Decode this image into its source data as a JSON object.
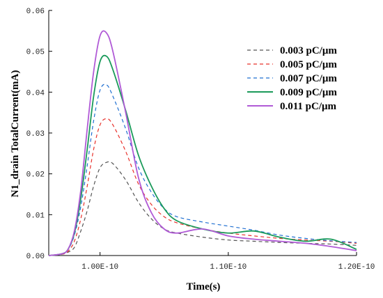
{
  "chart_data": {
    "type": "line",
    "xlabel": "Time(s)",
    "ylabel": "N1_drain TotalCurrent(mA)",
    "xlim": [
      9.6e-11,
      1.2e-10
    ],
    "ylim": [
      0,
      0.06
    ],
    "x_ticks": [
      {
        "value": 1e-10,
        "label": "1.00E-10"
      },
      {
        "value": 1.1e-10,
        "label": "1.10E-10"
      },
      {
        "value": 1.2e-10,
        "label": "1.20E-10"
      }
    ],
    "y_ticks": [
      {
        "value": 0,
        "label": "0.00"
      },
      {
        "value": 0.01,
        "label": "0.01"
      },
      {
        "value": 0.02,
        "label": "0.02"
      },
      {
        "value": 0.03,
        "label": "0.03"
      },
      {
        "value": 0.04,
        "label": "0.04"
      },
      {
        "value": 0.05,
        "label": "0.05"
      },
      {
        "value": 0.06,
        "label": "0.06"
      }
    ],
    "legend_position": "top-right",
    "grid": false,
    "series": [
      {
        "name": "0.003 pC/μm",
        "color": "#555555",
        "dash": "dashed",
        "x": [
          9.6e-11,
          9.7e-11,
          9.75e-11,
          9.8e-11,
          9.85e-11,
          9.9e-11,
          9.95e-11,
          1e-10,
          1.005e-10,
          1.01e-10,
          1.02e-10,
          1.03e-10,
          1.04e-10,
          1.05e-10,
          1.06e-10,
          1.08e-10,
          1.1e-10,
          1.12e-10,
          1.14e-10,
          1.16e-10,
          1.18e-10,
          1.2e-10
        ],
        "y": [
          0,
          0.0003,
          0.0008,
          0.002,
          0.006,
          0.011,
          0.017,
          0.0215,
          0.0228,
          0.0225,
          0.0185,
          0.013,
          0.009,
          0.0065,
          0.0055,
          0.0045,
          0.0038,
          0.0035,
          0.0032,
          0.003,
          0.0028,
          0.0025
        ]
      },
      {
        "name": "0.005 pC/μm",
        "color": "#e8302a",
        "dash": "dashed",
        "x": [
          9.6e-11,
          9.7e-11,
          9.75e-11,
          9.8e-11,
          9.85e-11,
          9.9e-11,
          9.95e-11,
          1e-10,
          1.005e-10,
          1.01e-10,
          1.02e-10,
          1.03e-10,
          1.04e-10,
          1.05e-10,
          1.06e-10,
          1.08e-10,
          1.1e-10,
          1.12e-10,
          1.14e-10,
          1.16e-10,
          1.18e-10,
          1.2e-10
        ],
        "y": [
          0,
          0.0003,
          0.001,
          0.0035,
          0.009,
          0.017,
          0.026,
          0.032,
          0.0335,
          0.032,
          0.0255,
          0.0175,
          0.0125,
          0.0095,
          0.008,
          0.0065,
          0.0055,
          0.0048,
          0.0042,
          0.0038,
          0.0035,
          0.003
        ]
      },
      {
        "name": "0.007 pC/μm",
        "color": "#1f6fd1",
        "dash": "dashed",
        "x": [
          9.6e-11,
          9.7e-11,
          9.75e-11,
          9.8e-11,
          9.85e-11,
          9.9e-11,
          9.95e-11,
          1e-10,
          1.005e-10,
          1.01e-10,
          1.02e-10,
          1.03e-10,
          1.04e-10,
          1.05e-10,
          1.06e-10,
          1.08e-10,
          1.1e-10,
          1.12e-10,
          1.14e-10,
          1.16e-10,
          1.18e-10,
          1.2e-10
        ],
        "y": [
          0,
          0.0004,
          0.0014,
          0.005,
          0.012,
          0.022,
          0.033,
          0.0405,
          0.0418,
          0.039,
          0.031,
          0.0215,
          0.0155,
          0.0115,
          0.0095,
          0.0082,
          0.0072,
          0.0062,
          0.005,
          0.0042,
          0.0036,
          0.0032
        ]
      },
      {
        "name": "0.009 pC/μm",
        "color": "#1a9a5a",
        "dash": "solid",
        "x": [
          9.6e-11,
          9.7e-11,
          9.75e-11,
          9.8e-11,
          9.85e-11,
          9.9e-11,
          9.95e-11,
          1e-10,
          1.005e-10,
          1.01e-10,
          1.02e-10,
          1.03e-10,
          1.04e-10,
          1.05e-10,
          1.06e-10,
          1.08e-10,
          1.1e-10,
          1.12e-10,
          1.14e-10,
          1.16e-10,
          1.18e-10,
          1.2e-10
        ],
        "y": [
          0,
          0.0004,
          0.0015,
          0.0055,
          0.014,
          0.026,
          0.039,
          0.0475,
          0.0488,
          0.0455,
          0.0355,
          0.0245,
          0.017,
          0.0115,
          0.0085,
          0.0065,
          0.0055,
          0.006,
          0.0045,
          0.0035,
          0.004,
          0.0015
        ]
      },
      {
        "name": "0.011 pC/μm",
        "color": "#b05ad6",
        "dash": "solid",
        "x": [
          9.6e-11,
          9.7e-11,
          9.75e-11,
          9.8e-11,
          9.85e-11,
          9.9e-11,
          9.95e-11,
          1e-10,
          1.005e-10,
          1.01e-10,
          1.02e-10,
          1.03e-10,
          1.04e-10,
          1.05e-10,
          1.06e-10,
          1.08e-10,
          1.1e-10,
          1.12e-10,
          1.14e-10,
          1.16e-10,
          1.18e-10,
          1.2e-10
        ],
        "y": [
          0,
          0.0004,
          0.0015,
          0.006,
          0.016,
          0.031,
          0.045,
          0.0538,
          0.0545,
          0.05,
          0.035,
          0.019,
          0.0105,
          0.0065,
          0.0055,
          0.0065,
          0.0048,
          0.004,
          0.0035,
          0.003,
          0.0022,
          0.0012
        ]
      }
    ]
  }
}
